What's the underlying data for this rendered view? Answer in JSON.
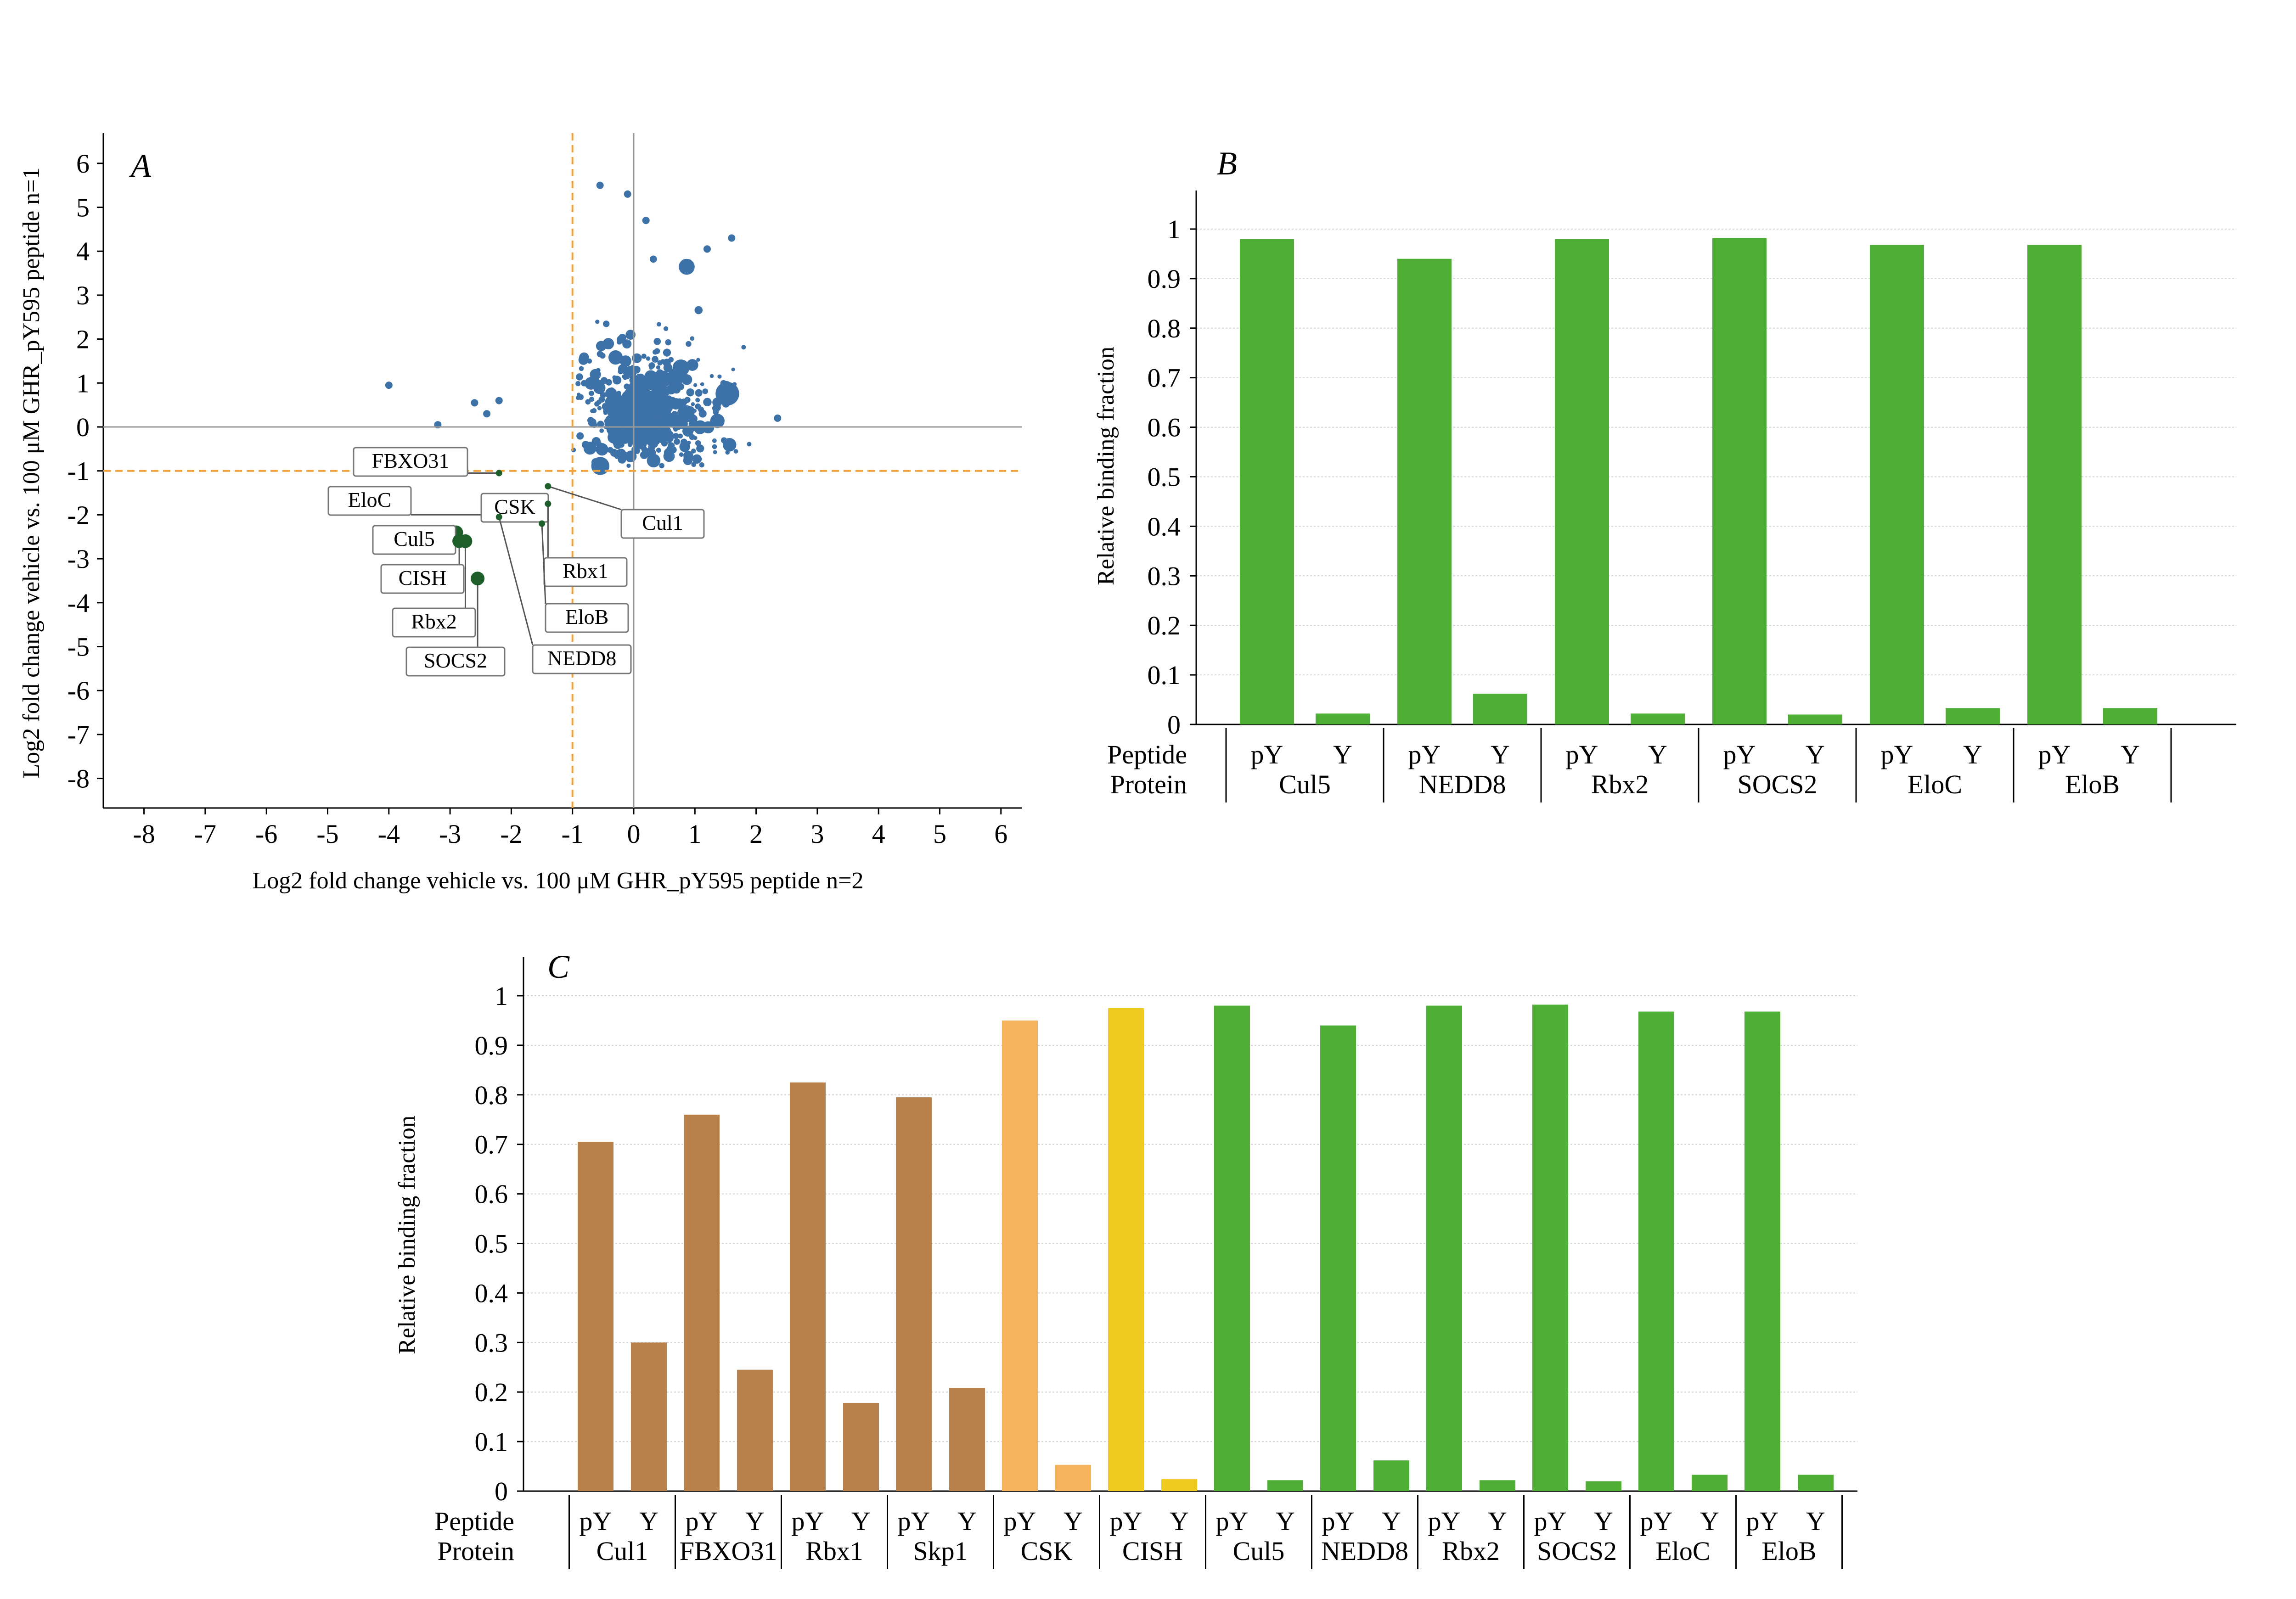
{
  "colors": {
    "scatter_blue": "#3d72a8",
    "scatter_green": "#1d5e2a",
    "ref_line_orange": "#f0a33c",
    "axis_gray": "#999999",
    "bar_brown": "#b8804a",
    "bar_light_orange": "#f6b35e",
    "bar_yellow": "#efcb22",
    "bar_green": "#4eae36"
  },
  "chart_data": [
    {
      "panel": "A",
      "type": "scatter",
      "xlabel": "Log2 fold change vehicle vs. 100 μM GHR_pY595 peptide n=2",
      "ylabel": "Log2 fold change vehicle vs. 100 μM GHR_pY595 peptide n=1",
      "xlim": [
        -9,
        6.3
      ],
      "ylim": [
        -8.8,
        6.5
      ],
      "xticks": [
        "-8",
        "-7",
        "-6",
        "-5",
        "-4",
        "-3",
        "-2",
        "-1",
        "0",
        "1",
        "2",
        "3",
        "4",
        "5",
        "6"
      ],
      "yticks": [
        "6",
        "5",
        "4",
        "3",
        "2",
        "1",
        "0",
        "-1",
        "-2",
        "-3",
        "-4",
        "-5",
        "-6",
        "-7",
        "-8"
      ],
      "reference_lines": {
        "x": -1,
        "y": -1
      },
      "labeled_points": [
        {
          "label": "FBXO31",
          "x": -2.2,
          "y": -1.05
        },
        {
          "label": "EloC",
          "x": -2.2,
          "y": -2.0
        },
        {
          "label": "CSK",
          "x": -1.8,
          "y": -1.7
        },
        {
          "label": "Cul1",
          "x": -1.4,
          "y": -1.35
        },
        {
          "label": "Cul5",
          "x": -2.9,
          "y": -2.4
        },
        {
          "label": "CISH",
          "x": -2.85,
          "y": -2.6
        },
        {
          "label": "Rbx1",
          "x": -1.4,
          "y": -1.75
        },
        {
          "label": "Rbx2",
          "x": -2.75,
          "y": -2.6
        },
        {
          "label": "EloB",
          "x": -1.5,
          "y": -2.2
        },
        {
          "label": "SOCS2",
          "x": -2.55,
          "y": -3.45
        },
        {
          "label": "NEDD8",
          "x": -2.2,
          "y": -2.05
        }
      ]
    },
    {
      "panel": "B",
      "type": "bar",
      "ylabel": "Relative binding fraction",
      "ylim": [
        0,
        1.05
      ],
      "yticks": [
        "1",
        "0.9",
        "0.8",
        "0.7",
        "0.6",
        "0.5",
        "0.4",
        "0.3",
        "0.2",
        "0.1",
        "0"
      ],
      "row_labels": [
        "Peptide",
        "Protein"
      ],
      "peptide_labels": [
        "pY",
        "Y"
      ],
      "groups": [
        {
          "protein": "Cul5",
          "values": [
            0.98,
            0.022
          ],
          "color": "#4eae36"
        },
        {
          "protein": "NEDD8",
          "values": [
            0.94,
            0.062
          ],
          "color": "#4eae36"
        },
        {
          "protein": "Rbx2",
          "values": [
            0.98,
            0.022
          ],
          "color": "#4eae36"
        },
        {
          "protein": "SOCS2",
          "values": [
            0.982,
            0.02
          ],
          "color": "#4eae36"
        },
        {
          "protein": "EloC",
          "values": [
            0.968,
            0.033
          ],
          "color": "#4eae36"
        },
        {
          "protein": "EloB",
          "values": [
            0.968,
            0.033
          ],
          "color": "#4eae36"
        }
      ]
    },
    {
      "panel": "C",
      "type": "bar",
      "ylabel": "Relative binding fraction",
      "ylim": [
        0,
        1.05
      ],
      "yticks": [
        "1",
        "0.9",
        "0.8",
        "0.7",
        "0.6",
        "0.5",
        "0.4",
        "0.3",
        "0.2",
        "0.1",
        "0"
      ],
      "row_labels": [
        "Peptide",
        "Protein"
      ],
      "peptide_labels": [
        "pY",
        "Y"
      ],
      "groups": [
        {
          "protein": "Cul1",
          "values": [
            0.705,
            0.3
          ],
          "color": "#b8804a"
        },
        {
          "protein": "FBXO31",
          "values": [
            0.76,
            0.245
          ],
          "color": "#b8804a"
        },
        {
          "protein": "Rbx1",
          "values": [
            0.825,
            0.178
          ],
          "color": "#b8804a"
        },
        {
          "protein": "Skp1",
          "values": [
            0.795,
            0.208
          ],
          "color": "#b8804a"
        },
        {
          "protein": "CSK",
          "values": [
            0.95,
            0.053
          ],
          "color": "#f6b35e"
        },
        {
          "protein": "CISH",
          "values": [
            0.975,
            0.025
          ],
          "color": "#efcb22"
        },
        {
          "protein": "Cul5",
          "values": [
            0.98,
            0.022
          ],
          "color": "#4eae36"
        },
        {
          "protein": "NEDD8",
          "values": [
            0.94,
            0.062
          ],
          "color": "#4eae36"
        },
        {
          "protein": "Rbx2",
          "values": [
            0.98,
            0.022
          ],
          "color": "#4eae36"
        },
        {
          "protein": "SOCS2",
          "values": [
            0.982,
            0.02
          ],
          "color": "#4eae36"
        },
        {
          "protein": "EloC",
          "values": [
            0.968,
            0.033
          ],
          "color": "#4eae36"
        },
        {
          "protein": "EloB",
          "values": [
            0.968,
            0.033
          ],
          "color": "#4eae36"
        }
      ]
    }
  ]
}
